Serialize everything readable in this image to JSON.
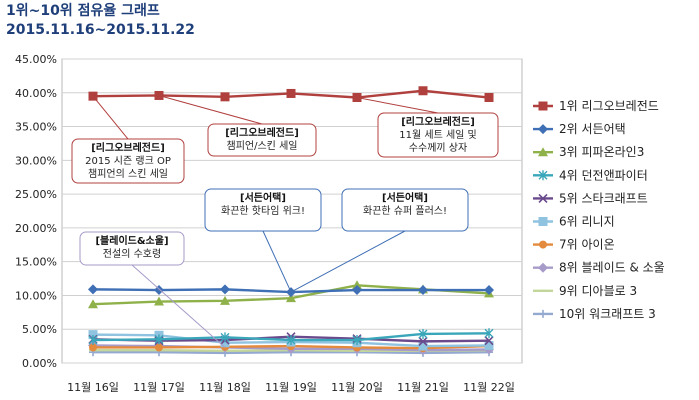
{
  "chart_data": {
    "type": "line",
    "title": "1위~10위 점유율 그래프",
    "subtitle": "2015.11.16~2015.11.22",
    "categories": [
      "11월 16일",
      "11월 17일",
      "11월 18일",
      "11월 19일",
      "11월 20일",
      "11월 21일",
      "11월 22일"
    ],
    "ylim": [
      0,
      45
    ],
    "yticks": [
      "0.00%",
      "5.00%",
      "10.00%",
      "15.00%",
      "20.00%",
      "25.00%",
      "30.00%",
      "35.00%",
      "40.00%",
      "45.00%"
    ],
    "grid": true,
    "legend_position": "right",
    "series": [
      {
        "name": "1위 리그오브레전드",
        "color": "#b0403e",
        "marker": "square",
        "values": [
          39.5,
          39.6,
          39.4,
          39.9,
          39.3,
          40.3,
          39.3
        ]
      },
      {
        "name": "2위 서든어택",
        "color": "#3f6fb5",
        "marker": "diamond",
        "values": [
          10.9,
          10.8,
          10.9,
          10.5,
          10.8,
          10.8,
          10.8
        ]
      },
      {
        "name": "3위 피파온라인3",
        "color": "#8fb14a",
        "marker": "triangle",
        "values": [
          8.7,
          9.1,
          9.2,
          9.6,
          11.5,
          10.9,
          10.3
        ]
      },
      {
        "name": "4위 던전앤파이터",
        "color": "#3aa6b9",
        "marker": "asterisk",
        "values": [
          3.4,
          3.5,
          3.8,
          3.4,
          3.4,
          4.3,
          4.4
        ]
      },
      {
        "name": "5위 스타크래프트",
        "color": "#6a4a8c",
        "marker": "x",
        "values": [
          3.5,
          3.3,
          3.4,
          3.9,
          3.6,
          3.2,
          3.3
        ]
      },
      {
        "name": "6위 리니지",
        "color": "#8fc3e0",
        "marker": "square",
        "values": [
          4.2,
          4.1,
          3.0,
          3.1,
          3.0,
          2.5,
          2.6
        ]
      },
      {
        "name": "7위 아이온",
        "color": "#e38a3c",
        "marker": "circle",
        "values": [
          2.3,
          2.3,
          2.4,
          2.5,
          2.3,
          2.2,
          2.5
        ]
      },
      {
        "name": "8위 블레이드 & 소울",
        "color": "#a79bc9",
        "marker": "diamond",
        "values": [
          2.6,
          2.5,
          2.3,
          2.1,
          2.1,
          1.9,
          2.0
        ]
      },
      {
        "name": "9위 디아블로 3",
        "color": "#c3d69b",
        "marker": "line",
        "values": [
          1.9,
          1.9,
          1.8,
          1.9,
          1.8,
          1.8,
          1.9
        ]
      },
      {
        "name": "10위 워크래프트 3",
        "color": "#93a9cf",
        "marker": "plus",
        "values": [
          1.6,
          1.6,
          1.5,
          1.6,
          1.6,
          1.5,
          1.6
        ]
      }
    ],
    "annotations": [
      {
        "title": "[리그오브레전드]",
        "lines": [
          "2015 시즌 랭크 OP",
          "챔피언의 스킨 세일"
        ],
        "series": 0,
        "point": 0,
        "color": "#b0403e"
      },
      {
        "title": "[리그오브레전드]",
        "lines": [
          "챔피언/스킨 세일"
        ],
        "series": 0,
        "point": 1,
        "color": "#b0403e"
      },
      {
        "title": "[리그오브레전드]",
        "lines": [
          "11월 세트 세일 및",
          "수수께끼 상자"
        ],
        "series": 0,
        "point": 4,
        "color": "#b0403e"
      },
      {
        "title": "[서든어택]",
        "lines": [
          "화끈한 핫타임 위크!"
        ],
        "series": 1,
        "point": 3,
        "color": "#3f6fb5"
      },
      {
        "title": "[서든어택]",
        "lines": [
          "화끈한 슈퍼 플러스!"
        ],
        "series": 1,
        "point": 3,
        "color": "#3f6fb5"
      },
      {
        "title": "[블레이드&소울]",
        "lines": [
          "전설의 수호령"
        ],
        "series": 7,
        "point": 2,
        "color": "#a79bc9"
      }
    ]
  }
}
